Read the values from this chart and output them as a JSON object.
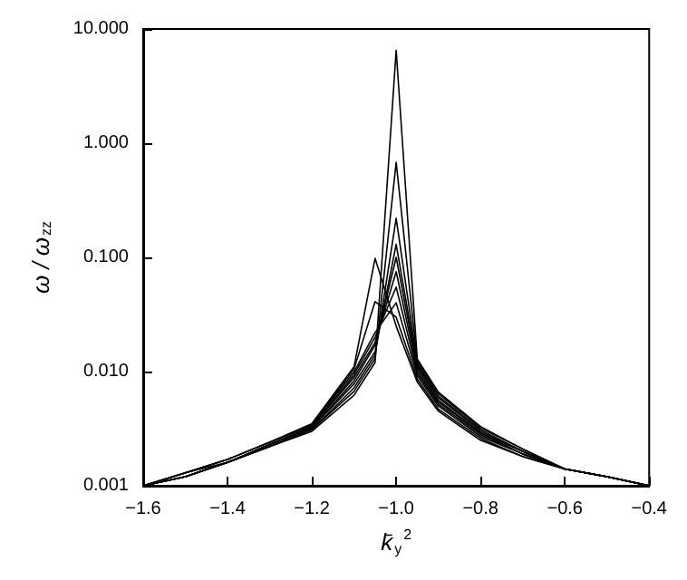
{
  "chart_data": {
    "type": "line",
    "xlabel": "k̄$_{y}$$^{2}$",
    "ylabel": "ω / ω$_{zz}$",
    "log": "y",
    "xlim": [
      -1.6,
      -0.4
    ],
    "ylim": [
      0.001,
      10
    ],
    "xticks": [
      {
        "value": -1.6,
        "label": "−1.6"
      },
      {
        "value": -1.4,
        "label": "−1.4"
      },
      {
        "value": -1.2,
        "label": "−1.2"
      },
      {
        "value": -1.0,
        "label": "−1.0"
      },
      {
        "value": -0.8,
        "label": "−0.8"
      },
      {
        "value": -0.6,
        "label": "−0.6"
      },
      {
        "value": -0.4,
        "label": "−0.4"
      }
    ],
    "yticks": [
      {
        "value": 0.001,
        "label": "0.001"
      },
      {
        "value": 0.01,
        "label": "0.010"
      },
      {
        "value": 0.1,
        "label": "0.100"
      },
      {
        "value": 1,
        "label": "1.000"
      },
      {
        "value": 10,
        "label": "10.000"
      }
    ],
    "x": [
      -1.6,
      -1.5,
      -1.4,
      -1.3,
      -1.2,
      -1.1,
      -1.05,
      -1.0,
      -0.95,
      -0.9,
      -0.8,
      -0.7,
      -0.6,
      -0.5,
      -0.4
    ],
    "series": [
      {
        "color": "#000000",
        "values": [
          0.001,
          0.0012,
          0.0016,
          0.0022,
          0.003,
          0.0062,
          0.012,
          6.5,
          0.0129,
          0.0066,
          0.0033,
          0.0021,
          0.0014,
          0.0012,
          0.001
        ]
      },
      {
        "color": "#000000",
        "values": [
          0.001,
          0.0012,
          0.0016,
          0.0022,
          0.0031,
          0.0067,
          0.013,
          0.68,
          0.0124,
          0.0064,
          0.0032,
          0.0021,
          0.0014,
          0.0012,
          0.001
        ]
      },
      {
        "color": "#000000",
        "values": [
          0.001,
          0.0012,
          0.0016,
          0.0022,
          0.0031,
          0.0072,
          0.014,
          0.22,
          0.0118,
          0.0061,
          0.0031,
          0.002,
          0.0014,
          0.0012,
          0.001
        ]
      },
      {
        "color": "#000000",
        "values": [
          0.001,
          0.0012,
          0.0016,
          0.0023,
          0.0032,
          0.0078,
          0.015,
          0.13,
          0.0113,
          0.0059,
          0.003,
          0.002,
          0.0014,
          0.0012,
          0.001
        ]
      },
      {
        "color": "#000000",
        "values": [
          0.001,
          0.0012,
          0.0016,
          0.0023,
          0.0032,
          0.0083,
          0.017,
          0.1,
          0.0108,
          0.0056,
          0.0029,
          0.002,
          0.0014,
          0.0012,
          0.001
        ]
      },
      {
        "color": "#000000",
        "values": [
          0.001,
          0.0012,
          0.0016,
          0.0023,
          0.0033,
          0.0089,
          0.018,
          0.075,
          0.0102,
          0.0054,
          0.0029,
          0.0019,
          0.0014,
          0.0012,
          0.001
        ]
      },
      {
        "color": "#000000",
        "values": [
          0.001,
          0.0013,
          0.0016,
          0.0023,
          0.0033,
          0.0094,
          0.02,
          0.055,
          0.0097,
          0.0052,
          0.0028,
          0.0019,
          0.0014,
          0.0012,
          0.001
        ]
      },
      {
        "color": "#000000",
        "values": [
          0.001,
          0.0013,
          0.0017,
          0.0024,
          0.0034,
          0.0099,
          0.022,
          0.04,
          0.0092,
          0.005,
          0.0027,
          0.0019,
          0.0014,
          0.0012,
          0.001
        ]
      },
      {
        "color": "#000000",
        "values": [
          0.001,
          0.0013,
          0.0017,
          0.0024,
          0.0034,
          0.0105,
          0.041,
          0.03,
          0.0086,
          0.0047,
          0.0026,
          0.0018,
          0.0014,
          0.0012,
          0.001
        ]
      },
      {
        "color": "#000000",
        "values": [
          0.001,
          0.0013,
          0.0017,
          0.0024,
          0.0035,
          0.011,
          0.098,
          0.025,
          0.0081,
          0.0045,
          0.0025,
          0.0018,
          0.0014,
          0.0012,
          0.001
        ]
      }
    ]
  }
}
